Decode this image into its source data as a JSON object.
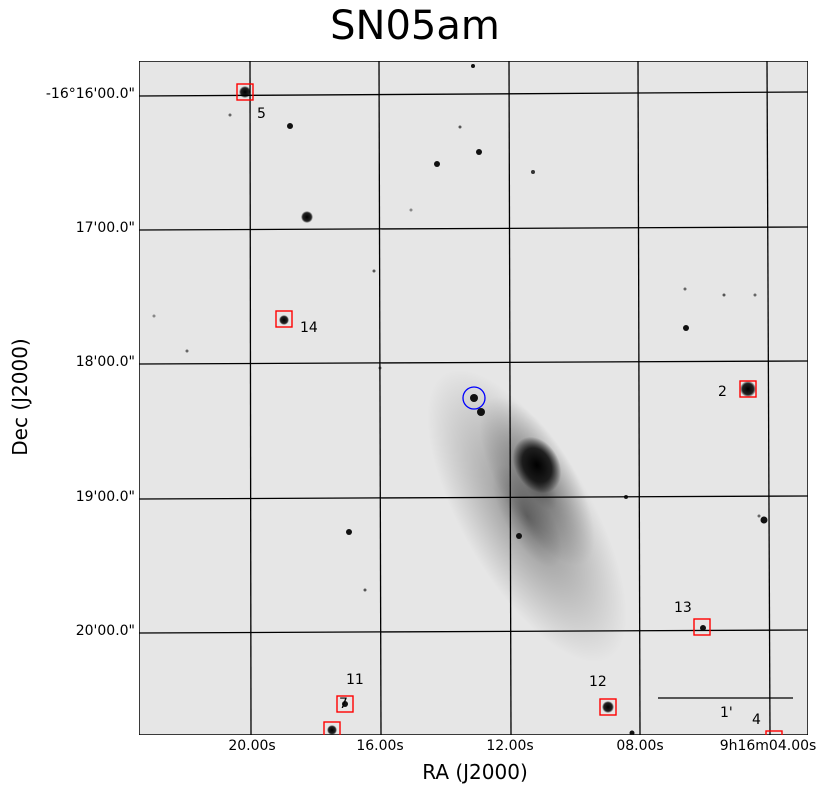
{
  "title": "SN05am",
  "axes": {
    "xlabel": "RA (J2000)",
    "ylabel": "Dec (J2000)",
    "ra_ticks": [
      "20.00s",
      "16.00s",
      "12.00s",
      "08.00s",
      "9h16m04.00s"
    ],
    "dec_ticks": [
      "-16°16'00.0\"",
      "17'00.0\"",
      "18'00.0\"",
      "19'00.0\"",
      "20'00.0\""
    ]
  },
  "markers": [
    {
      "label": "5"
    },
    {
      "label": "14"
    },
    {
      "label": "2"
    },
    {
      "label": "13"
    },
    {
      "label": "11"
    },
    {
      "label": "7"
    },
    {
      "label": "12"
    },
    {
      "label": "4"
    }
  ],
  "scale_bar": {
    "label": "1'"
  },
  "colors": {
    "sky": "#e6e6e6",
    "grid": "#000000",
    "marker": "#ff0000",
    "target_circle": "#0000ff"
  }
}
